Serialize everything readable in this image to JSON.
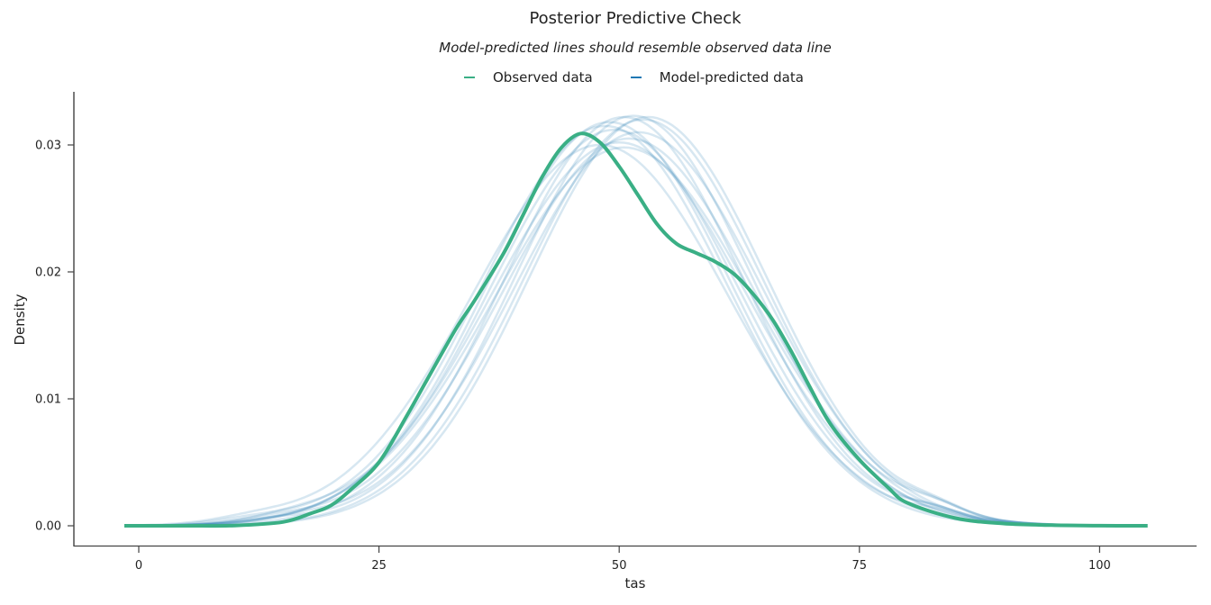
{
  "chart_data": {
    "type": "line",
    "title": "Posterior Predictive Check",
    "subtitle": "Model-predicted lines should resemble observed data line",
    "xlabel": "tas",
    "ylabel": "Density",
    "xlim": [
      -6.7,
      110.3
    ],
    "ylim": [
      -0.0016,
      0.0341
    ],
    "xticks": [
      0,
      25,
      50,
      75,
      100
    ],
    "yticks": [
      0.0,
      0.01,
      0.02,
      0.03
    ],
    "xtick_labels": [
      "0",
      "25",
      "50",
      "75",
      "100"
    ],
    "ytick_labels": [
      "0.00",
      "0.01",
      "0.02",
      "0.03"
    ],
    "grid": false,
    "legend_position": "top-center",
    "legend": [
      {
        "label": "Observed data",
        "color": "#3aaf85"
      },
      {
        "label": "Model-predicted data",
        "color": "#1f78b4"
      }
    ],
    "series": [
      {
        "name": "Observed data",
        "color": "#3aaf85",
        "x": [
          -1.5,
          5,
          10,
          15,
          18,
          20,
          22,
          25,
          28,
          30,
          33,
          35,
          38,
          40,
          42,
          44,
          46,
          48,
          50,
          52,
          54,
          56,
          58,
          60,
          62,
          64,
          66,
          68,
          70,
          72,
          75,
          78,
          80,
          85,
          90,
          95,
          100,
          105
        ],
        "values": [
          0.0,
          0.0,
          2e-05,
          0.0003,
          0.001,
          0.0016,
          0.0028,
          0.005,
          0.0088,
          0.0115,
          0.0155,
          0.0178,
          0.0215,
          0.0245,
          0.0275,
          0.0298,
          0.0309,
          0.0302,
          0.0283,
          0.026,
          0.0237,
          0.0222,
          0.0215,
          0.0208,
          0.0198,
          0.0182,
          0.0162,
          0.0136,
          0.0107,
          0.008,
          0.0052,
          0.003,
          0.0018,
          0.0006,
          0.00018,
          5e-05,
          1e-05,
          0.0
        ]
      },
      {
        "name": "Model-predicted data",
        "color": "#1f78b4",
        "opacity": 0.18,
        "draws": [
          {
            "mu": 50.5,
            "peak": 0.0322
          },
          {
            "mu": 51.5,
            "peak": 0.0323
          },
          {
            "mu": 49.0,
            "peak": 0.0318
          },
          {
            "mu": 48.0,
            "peak": 0.03
          },
          {
            "mu": 52.5,
            "peak": 0.032
          },
          {
            "mu": 50.0,
            "peak": 0.0302
          },
          {
            "mu": 49.5,
            "peak": 0.0312
          },
          {
            "mu": 51.0,
            "peak": 0.0305
          },
          {
            "mu": 53.0,
            "peak": 0.0322
          },
          {
            "mu": 48.5,
            "peak": 0.0315
          },
          {
            "mu": 50.5,
            "peak": 0.0298
          },
          {
            "mu": 52.0,
            "peak": 0.031
          }
        ],
        "x_range": [
          -1.5,
          105
        ]
      }
    ]
  }
}
